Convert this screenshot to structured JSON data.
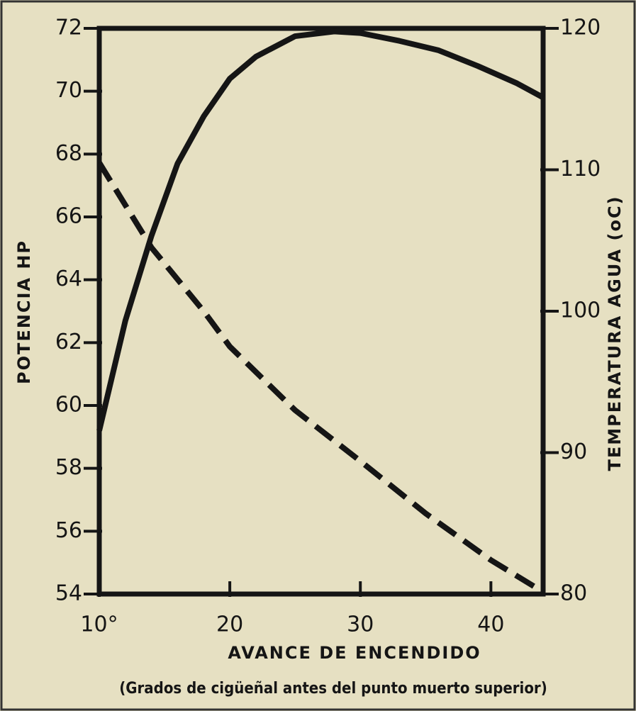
{
  "chart_data": {
    "type": "line",
    "xlabel": "AVANCE DE ENCENDIDO",
    "caption": "(Grados de cigüeñal antes del punto muerto superior)",
    "ylabel": "POTENCIA HP",
    "y2label": "TEMPERATURA AGUA (oC)",
    "xlim": [
      10,
      44
    ],
    "xticks": [
      {
        "value": 10,
        "label": "10°"
      },
      20,
      30,
      40
    ],
    "ylim": [
      54,
      72
    ],
    "yticks": [
      54,
      56,
      58,
      60,
      62,
      64,
      66,
      68,
      70,
      72
    ],
    "y2lim": [
      80,
      120
    ],
    "y2ticks": [
      80,
      90,
      100,
      110,
      120
    ],
    "series": [
      {
        "color": "#151515",
        "linestyle": "solid",
        "x": [
          10,
          12,
          14,
          16,
          18,
          20,
          22,
          25,
          28,
          30,
          33,
          36,
          39,
          42,
          44
        ],
        "values": [
          59.2,
          62.7,
          65.4,
          67.7,
          69.2,
          70.4,
          71.1,
          71.75,
          71.9,
          71.85,
          71.6,
          71.3,
          70.8,
          70.25,
          69.8
        ]
      },
      {
        "color": "#151515",
        "linestyle": "dashed",
        "axis": "y2",
        "x": [
          10,
          14,
          18,
          20,
          25,
          30,
          35,
          40,
          44
        ],
        "values": [
          110.5,
          104.5,
          100,
          97.5,
          93,
          89.4,
          85.7,
          82.4,
          80.15
        ]
      }
    ]
  }
}
